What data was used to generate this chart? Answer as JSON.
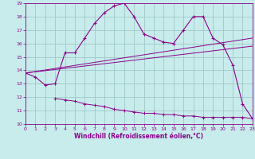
{
  "xlabel": "Windchill (Refroidissement éolien,°C)",
  "bg_color": "#c8ecec",
  "line_color": "#8b008b",
  "grid_color": "#a0c8c8",
  "xmin": 0,
  "xmax": 23,
  "ymin": 10,
  "ymax": 19,
  "x_ticks": [
    0,
    1,
    2,
    3,
    4,
    5,
    6,
    7,
    8,
    9,
    10,
    11,
    12,
    13,
    14,
    15,
    16,
    17,
    18,
    19,
    20,
    21,
    22,
    23
  ],
  "y_ticks": [
    10,
    11,
    12,
    13,
    14,
    15,
    16,
    17,
    18,
    19
  ],
  "line1_x": [
    0,
    1,
    2,
    3,
    4,
    5,
    6,
    7,
    8,
    9,
    10,
    11,
    12,
    13,
    14,
    15,
    16,
    17,
    18,
    19,
    20,
    21,
    22,
    23
  ],
  "line1_y": [
    13.8,
    13.5,
    12.9,
    13.0,
    15.3,
    15.3,
    16.4,
    17.5,
    18.3,
    18.8,
    19.0,
    18.0,
    16.7,
    16.4,
    16.1,
    16.0,
    17.0,
    18.0,
    18.0,
    16.4,
    15.9,
    14.4,
    11.5,
    10.4
  ],
  "line2_x": [
    0,
    23
  ],
  "line2_y": [
    13.8,
    16.4
  ],
  "line3_x": [
    0,
    23
  ],
  "line3_y": [
    13.8,
    15.8
  ],
  "line4_x": [
    3,
    4,
    5,
    6,
    7,
    8,
    9,
    10,
    11,
    12,
    13,
    14,
    15,
    16,
    17,
    18,
    19,
    20,
    21,
    22,
    23
  ],
  "line4_y": [
    11.9,
    11.8,
    11.7,
    11.5,
    11.4,
    11.3,
    11.1,
    11.0,
    10.9,
    10.8,
    10.8,
    10.7,
    10.7,
    10.6,
    10.6,
    10.5,
    10.5,
    10.5,
    10.5,
    10.5,
    10.4
  ]
}
